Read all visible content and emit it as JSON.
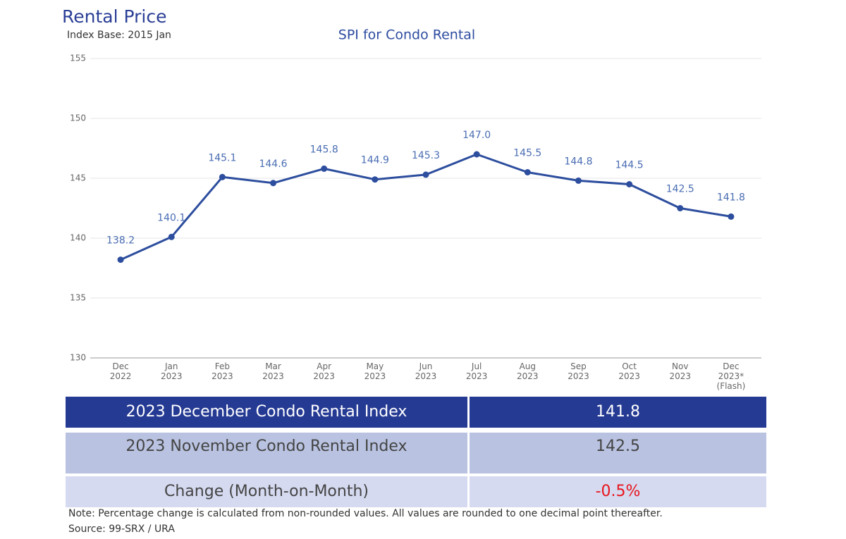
{
  "header": {
    "title": "Rental Price",
    "subtitle": "Index Base: 2015 Jan"
  },
  "chart_data": {
    "type": "line",
    "title": "SPI for Condo Rental",
    "categories": [
      [
        "Dec",
        "2022"
      ],
      [
        "Jan",
        "2023"
      ],
      [
        "Feb",
        "2023"
      ],
      [
        "Mar",
        "2023"
      ],
      [
        "Apr",
        "2023"
      ],
      [
        "May",
        "2023"
      ],
      [
        "Jun",
        "2023"
      ],
      [
        "Jul",
        "2023"
      ],
      [
        "Aug",
        "2023"
      ],
      [
        "Sep",
        "2023"
      ],
      [
        "Oct",
        "2023"
      ],
      [
        "Nov",
        "2023"
      ],
      [
        "Dec",
        "2023*",
        "(Flash)"
      ]
    ],
    "values": [
      138.2,
      140.1,
      145.1,
      144.6,
      145.8,
      144.9,
      145.3,
      147.0,
      145.5,
      144.8,
      144.5,
      142.5,
      141.8
    ],
    "value_labels": [
      "138.2",
      "140.1",
      "145.1",
      "144.6",
      "145.8",
      "144.9",
      "145.3",
      "147.0",
      "145.5",
      "144.8",
      "144.5",
      "142.5",
      "141.8"
    ],
    "color": "#2d4e9e",
    "ylim": [
      130,
      155
    ],
    "yticks": [
      130,
      135,
      140,
      145,
      150,
      155
    ],
    "grid": true
  },
  "table": {
    "rows": [
      [
        "2023 December Condo Rental Index",
        "141.8"
      ],
      [
        "2023 November Condo Rental Index",
        "142.5"
      ],
      [
        "Change (Month-on-Month)",
        "-0.5%"
      ]
    ]
  },
  "notes": {
    "note": "Note: Percentage change is calculated from non-rounded values.  All values are rounded to one decimal point thereafter.",
    "source": "Source: 99-SRX / URA"
  }
}
